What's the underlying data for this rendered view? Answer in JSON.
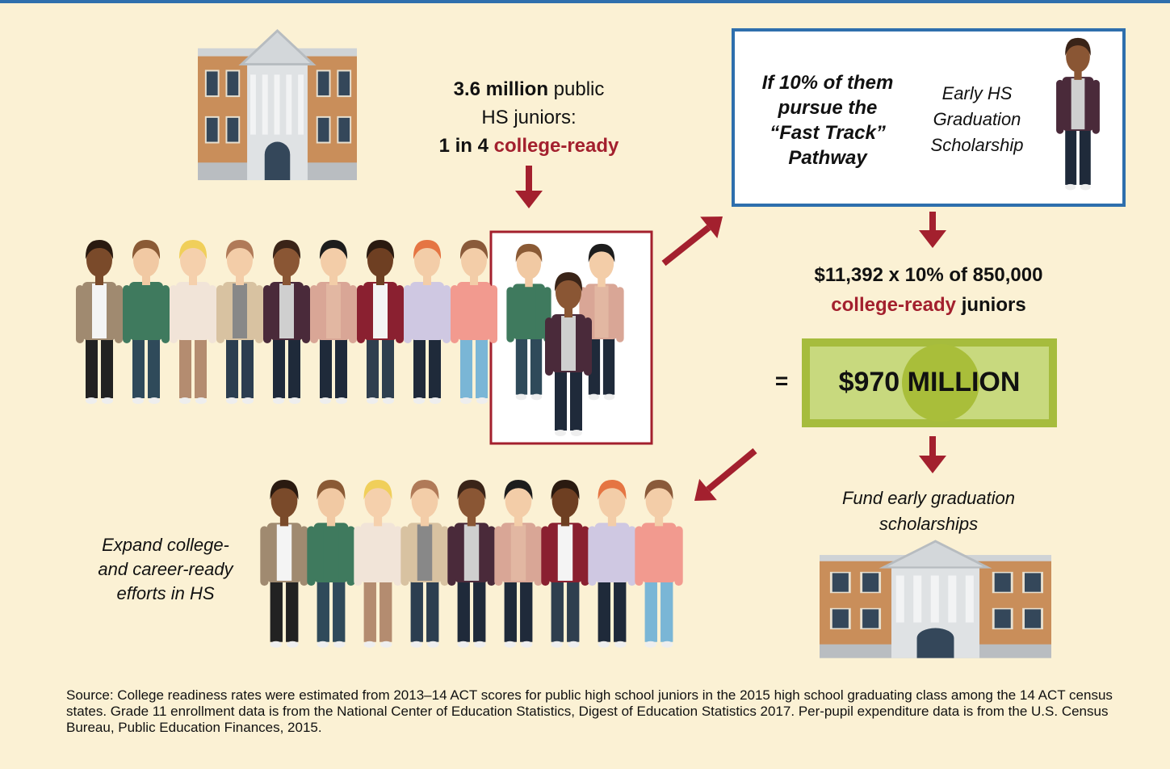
{
  "juniors": {
    "count": "3.6 million",
    "count_rest": "public",
    "line2": "HS juniors:",
    "ratio": "1 in 4",
    "ready": "college-ready"
  },
  "fast_track": {
    "condition": "If 10% of them pursue the “Fast Track” Pathway",
    "scholarship": "Early HS Graduation Scholarship"
  },
  "calculation": {
    "formula": "$11,392 x 10% of 850,000",
    "ready": "college-ready",
    "juniors": "juniors"
  },
  "result": {
    "equals": "=",
    "amount": "$970",
    "unit": "MILLION"
  },
  "fund": "Fund early graduation scholarships",
  "expand": "Expand college- and career-ready efforts in HS",
  "source": "Source: College readiness rates were estimated from 2013–14 ACT scores for public high school juniors in the 2015 high school graduating class among the 14 ACT census states. Grade 11 enrollment data is from the National Center of Education Statistics, Digest of Education Statistics 2017. Per-pupil expenditure data is from the U.S. Census Bureau, Public Education Finances, 2015."
}
